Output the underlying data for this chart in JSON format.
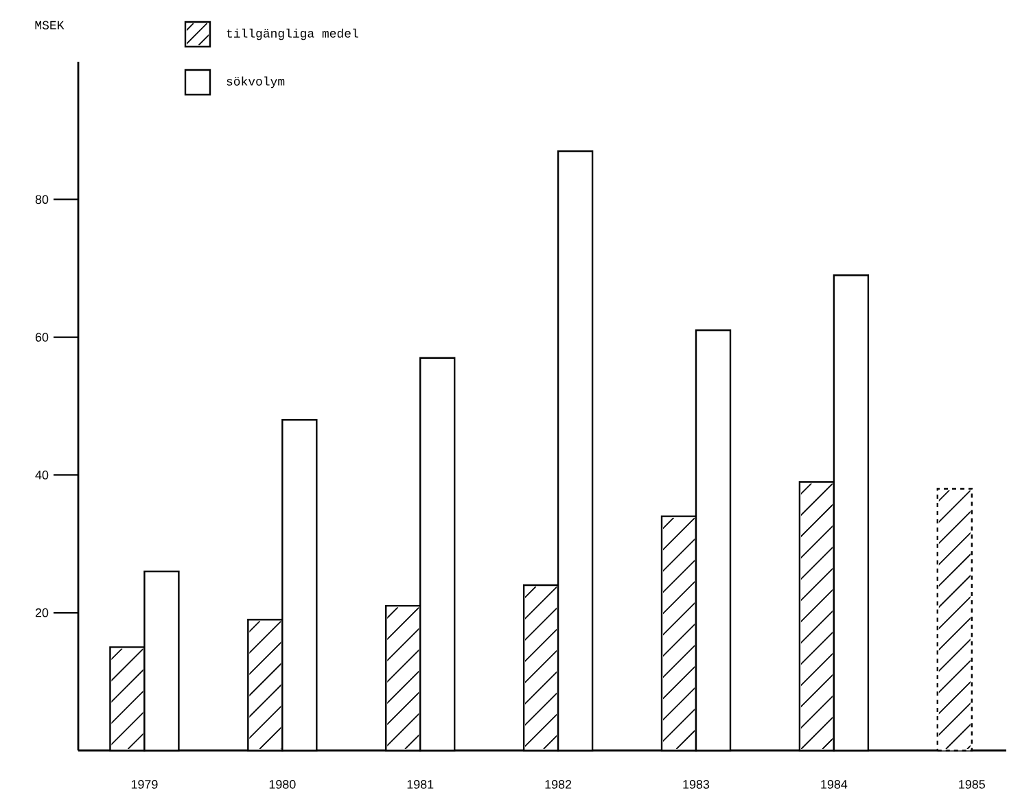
{
  "chart_data": {
    "type": "bar",
    "ylabel": "MSEK",
    "categories": [
      "1979",
      "1980",
      "1981",
      "1982",
      "1983",
      "1984",
      "1985"
    ],
    "series": [
      {
        "name": "tillgängliga medel",
        "color": "#ffffff",
        "values": [
          15,
          19,
          21,
          24,
          34,
          39,
          null
        ]
      },
      {
        "name": "sökvolym",
        "color": "#ffffff",
        "values": [
          26,
          48,
          57,
          87,
          61,
          69,
          null
        ]
      },
      {
        "color": "#ffffff",
        "line_style": "dashed",
        "values": [
          null,
          null,
          null,
          null,
          null,
          null,
          38
        ]
      }
    ],
    "ylim": [
      0,
      100
    ],
    "yticks": [
      20,
      40,
      60,
      80
    ],
    "legend": "top left"
  }
}
